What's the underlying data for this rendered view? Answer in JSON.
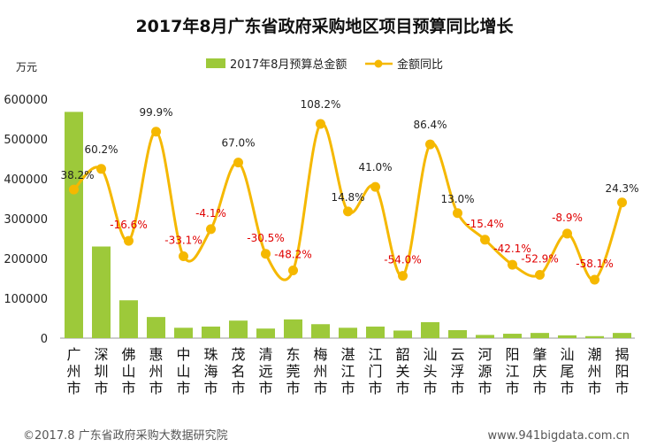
{
  "chart_data": {
    "type": "bar+line",
    "title": "2017年8月广东省政府采购地区项目预算同比增长",
    "unit_label": "万元",
    "legend": {
      "bar_series": "2017年8月预算总金额",
      "line_series": "金额同比"
    },
    "categories": [
      "广州市",
      "深圳市",
      "佛山市",
      "惠州市",
      "中山市",
      "珠海市",
      "茂名市",
      "清远市",
      "东莞市",
      "梅州市",
      "湛江市",
      "江门市",
      "韶关市",
      "汕头市",
      "云浮市",
      "河源市",
      "阳江市",
      "肇庆市",
      "汕尾市",
      "潮州市",
      "揭阳市"
    ],
    "y_ticks": [
      "0",
      "100000",
      "200000",
      "300000",
      "400000",
      "500000",
      "600000"
    ],
    "ylim": [
      0,
      600000
    ],
    "series": [
      {
        "name": "2017年8月预算总金额",
        "kind": "bar",
        "values": [
          568000,
          230000,
          95000,
          53000,
          26000,
          29000,
          44000,
          24000,
          47000,
          35000,
          26000,
          29000,
          19000,
          40000,
          20000,
          8000,
          11000,
          13000,
          7000,
          5000,
          13000
        ]
      },
      {
        "name": "金额同比",
        "kind": "line",
        "values": [
          38.2,
          60.2,
          -16.6,
          99.9,
          -33.1,
          -4.1,
          67.0,
          -30.5,
          -48.2,
          108.2,
          14.8,
          41.0,
          -54.0,
          86.4,
          13.0,
          -15.4,
          -42.1,
          -52.9,
          -8.9,
          -58.1,
          24.3
        ],
        "labels": [
          "38.2%",
          "60.2%",
          "-16.6%",
          "99.9%",
          "-33.1%",
          "-4.1%",
          "67.0%",
          "-30.5%",
          "-48.2%",
          "108.2%",
          "14.8%",
          "41.0%",
          "-54.0%",
          "86.4%",
          "13.0%",
          "-15.4%",
          "-42.1%",
          "-52.9%",
          "-8.9%",
          "-58.1%",
          "24.3%"
        ]
      }
    ]
  },
  "colors": {
    "bar": "#9dc93a",
    "line": "#f5b800",
    "negative_label": "#e00000"
  },
  "footer": {
    "left": "©2017.8 广东省政府采购大数据研究院",
    "right": "www.941bigdata.com.cn"
  }
}
